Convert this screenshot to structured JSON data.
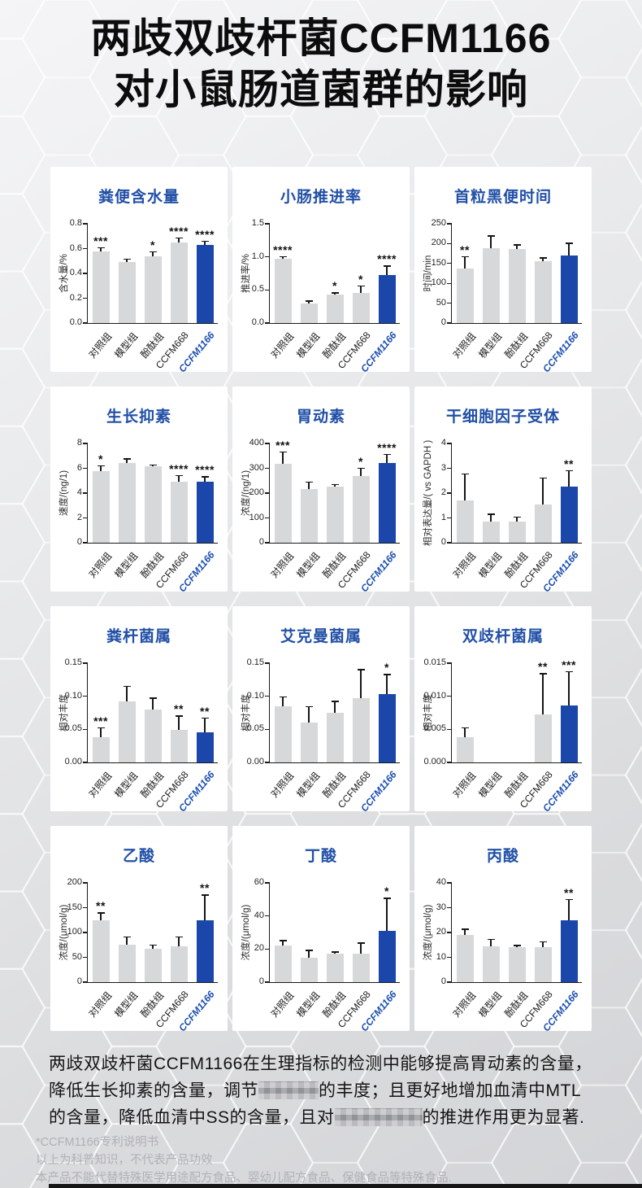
{
  "page": {
    "title_line1": "两歧双歧杆菌CCFM1166",
    "title_line2": "对小鼠肠道菌群的影响"
  },
  "colors": {
    "bar_gray": "#d7d8da",
    "bar_blue": "#1b46aa",
    "chart_title_blue": "#2150a6",
    "highlight_label_blue": "#1d4fb0",
    "axis_black": "#1a1a1a",
    "footnote_gray": "#b0b1b5"
  },
  "categories": [
    "对照组",
    "模型组",
    "酚酞组",
    "CCFM668",
    "CCFM1166"
  ],
  "highlight_index": 4,
  "chart_data": [
    {
      "type": "bar",
      "title": "粪便含水量",
      "ylabel": "含水量/%",
      "ylim": [
        0,
        0.8
      ],
      "yticks": [
        "0.0",
        "0.2",
        "0.4",
        "0.6",
        "0.8"
      ],
      "values": [
        0.58,
        0.49,
        0.54,
        0.65,
        0.63
      ],
      "errors": [
        0.03,
        0.03,
        0.04,
        0.04,
        0.035
      ],
      "sig": [
        "***",
        "",
        "*",
        "****",
        "****"
      ]
    },
    {
      "type": "bar",
      "title": "小肠推进率",
      "ylabel": "推进率/%",
      "ylim": [
        0,
        1.5
      ],
      "yticks": [
        "0.0",
        "0.5",
        "1.0",
        "1.5"
      ],
      "values": [
        0.97,
        0.3,
        0.43,
        0.45,
        0.73
      ],
      "errors": [
        0.04,
        0.04,
        0.035,
        0.12,
        0.14
      ],
      "sig": [
        "****",
        "",
        "*",
        "*",
        "****"
      ]
    },
    {
      "type": "bar",
      "title": "首粒黑便时间",
      "ylabel": "时间/min",
      "ylim": [
        0,
        250
      ],
      "yticks": [
        "0",
        "50",
        "100",
        "150",
        "200",
        "250"
      ],
      "values": [
        137,
        188,
        187,
        155,
        170
      ],
      "errors": [
        32,
        33,
        11,
        11,
        32
      ],
      "sig": [
        "**",
        "",
        "",
        "",
        ""
      ]
    },
    {
      "type": "bar",
      "title": "生长抑素",
      "ylabel": "速度/(ng/1)",
      "ylim": [
        0,
        8
      ],
      "yticks": [
        "0",
        "2",
        "4",
        "6",
        "8"
      ],
      "values": [
        5.8,
        6.45,
        6.15,
        4.95,
        4.95
      ],
      "errors": [
        0.45,
        0.35,
        0.15,
        0.5,
        0.4
      ],
      "sig": [
        "*",
        "",
        "",
        "****",
        "****"
      ]
    },
    {
      "type": "bar",
      "title": "胃动素",
      "ylabel": "浓度/(ng/1)",
      "ylim": [
        0,
        400
      ],
      "yticks": [
        "0",
        "100",
        "200",
        "300",
        "400"
      ],
      "values": [
        318,
        218,
        225,
        268,
        320
      ],
      "errors": [
        50,
        28,
        12,
        35,
        38
      ],
      "sig": [
        "***",
        "",
        "",
        "*",
        "****"
      ]
    },
    {
      "type": "bar",
      "title": "干细胞因子受体",
      "ylabel": "相对表达量/( vs GAPDH )",
      "ylim": [
        0,
        4
      ],
      "yticks": [
        "0",
        "1",
        "2",
        "3",
        "4"
      ],
      "values": [
        1.7,
        0.85,
        0.85,
        1.55,
        2.27
      ],
      "errors": [
        1.1,
        0.33,
        0.2,
        1.08,
        0.65
      ],
      "sig": [
        "",
        "",
        "",
        "",
        "**"
      ]
    },
    {
      "type": "bar",
      "title": "粪杆菌属",
      "ylabel": "相对丰度",
      "ylim": [
        0,
        0.15
      ],
      "yticks": [
        "0.00",
        "0.05",
        "0.10",
        "0.15"
      ],
      "values": [
        0.038,
        0.092,
        0.08,
        0.049,
        0.046
      ],
      "errors": [
        0.015,
        0.024,
        0.018,
        0.022,
        0.022
      ],
      "sig": [
        "***",
        "",
        "",
        "**",
        "**"
      ]
    },
    {
      "type": "bar",
      "title": "艾克曼菌属",
      "ylabel": "相对丰度",
      "ylim": [
        0,
        0.15
      ],
      "yticks": [
        "0.00",
        "0.05",
        "0.10",
        "0.15"
      ],
      "values": [
        0.085,
        0.06,
        0.075,
        0.097,
        0.103
      ],
      "errors": [
        0.015,
        0.025,
        0.018,
        0.044,
        0.031
      ],
      "sig": [
        "",
        "",
        "",
        "",
        "*"
      ]
    },
    {
      "type": "bar",
      "title": "双歧杆菌属",
      "ylabel": "相对丰度",
      "ylim": [
        0,
        0.015
      ],
      "yticks": [
        "0.000",
        "0.005",
        "0.010",
        "0.015"
      ],
      "values": [
        0.0038,
        0,
        0,
        0.0072,
        0.0086
      ],
      "errors": [
        0.0015,
        0,
        0,
        0.0063,
        0.0052
      ],
      "sig": [
        "",
        "",
        "",
        "**",
        "***"
      ]
    },
    {
      "type": "bar",
      "title": "乙酸",
      "ylabel": "浓度/(μmol/g)",
      "ylim": [
        0,
        200
      ],
      "yticks": [
        "0",
        "50",
        "100",
        "150",
        "200"
      ],
      "values": [
        125,
        75,
        68,
        72,
        125
      ],
      "errors": [
        16,
        17,
        8,
        20,
        52
      ],
      "sig": [
        "**",
        "",
        "",
        "",
        "**"
      ]
    },
    {
      "type": "bar",
      "title": "丁酸",
      "ylabel": "浓度/(μmol/g)",
      "ylim": [
        0,
        60
      ],
      "yticks": [
        "0",
        "20",
        "40",
        "60"
      ],
      "values": [
        22,
        15,
        17,
        17,
        31
      ],
      "errors": [
        3.5,
        4.5,
        1.5,
        7,
        20
      ],
      "sig": [
        "",
        "",
        "",
        "",
        "*"
      ]
    },
    {
      "type": "bar",
      "title": "丙酸",
      "ylabel": "浓度/(μmol/g)",
      "ylim": [
        0,
        40
      ],
      "yticks": [
        "0",
        "10",
        "20",
        "30",
        "40"
      ],
      "values": [
        19,
        14.5,
        14,
        14,
        25
      ],
      "errors": [
        2.5,
        3,
        1,
        2.5,
        8.5
      ],
      "sig": [
        "",
        "",
        "",
        "",
        "**"
      ]
    }
  ],
  "summary": {
    "segments": [
      {
        "text": "两歧双歧杆菌CCFM1166在生理指标的检测中能够提高胃动素的含量，降低生长抑素的含量，调节"
      },
      {
        "censored": true,
        "width": 74
      },
      {
        "text": "的丰度；且更好地增加血清中MTL的含量，降低血清中SS的含量，且对"
      },
      {
        "censored": true,
        "width": 108
      },
      {
        "text": "的推进作用更为显著."
      }
    ]
  },
  "footnotes": [
    "*CCFM1166专利说明书",
    "以上为科普知识，不代表产品功效",
    "本产品不能代替特殊医学用途配方食品、婴幼儿配方食品、保健食品等特殊食品."
  ]
}
